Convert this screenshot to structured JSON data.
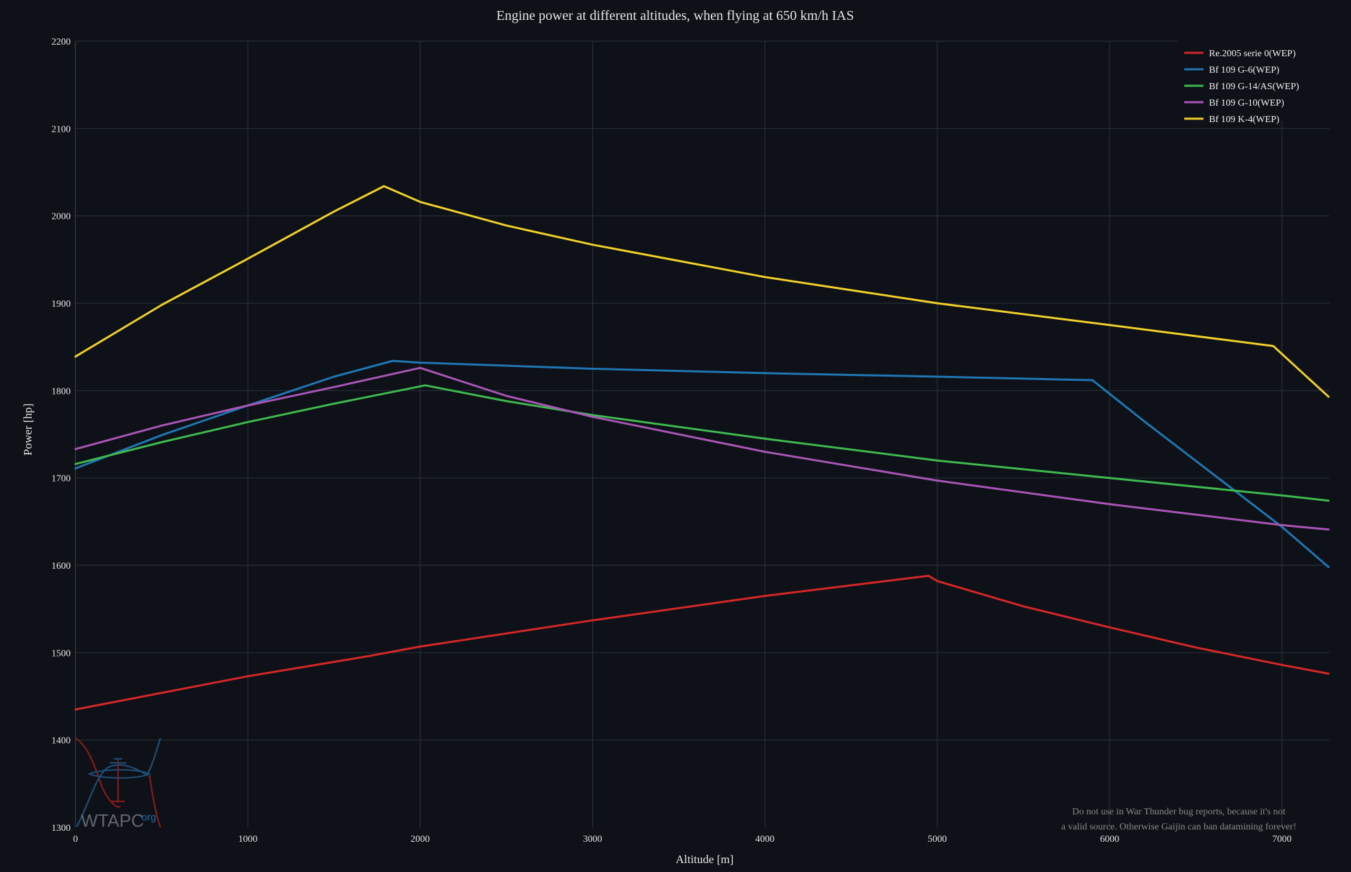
{
  "chart_data": {
    "type": "line",
    "title": "Engine power at different altitudes, when flying at 650 km/h IAS",
    "xlabel": "Altitude [m]",
    "ylabel": "Power [hp]",
    "xlim": [
      0,
      7300
    ],
    "ylim": [
      1300,
      2200
    ],
    "xticks": [
      0,
      1000,
      2000,
      3000,
      4000,
      5000,
      6000,
      7000
    ],
    "yticks": [
      1300,
      1400,
      1500,
      1600,
      1700,
      1800,
      1900,
      2000,
      2100,
      2200
    ],
    "grid": true,
    "legend_position": "top-right",
    "series": [
      {
        "name": "Re.2005 serie 0(WEP)",
        "color": "#d62728",
        "x": [
          0,
          1000,
          1700,
          2000,
          3000,
          4000,
          4950,
          5000,
          5500,
          6000,
          6500,
          7000,
          7270
        ],
        "y": [
          1435,
          1473,
          1496,
          1507,
          1537,
          1565,
          1588,
          1582,
          1553,
          1529,
          1506,
          1486,
          1476
        ]
      },
      {
        "name": "Bf 109 G-6(WEP)",
        "color": "#1f77b4",
        "x": [
          0,
          500,
          1000,
          1500,
          1840,
          2000,
          3000,
          4000,
          5000,
          5900,
          6200,
          7000,
          7270
        ],
        "y": [
          1711,
          1749,
          1783,
          1816,
          1834,
          1832,
          1825,
          1820,
          1816,
          1812,
          1765,
          1644,
          1598
        ]
      },
      {
        "name": "Bf 109 G-14/AS(WEP)",
        "color": "#3fb950",
        "x": [
          0,
          500,
          1000,
          1500,
          2030,
          2500,
          3000,
          4000,
          5000,
          6000,
          7000,
          7270
        ],
        "y": [
          1716,
          1741,
          1764,
          1785,
          1806,
          1788,
          1772,
          1745,
          1720,
          1700,
          1680,
          1674
        ]
      },
      {
        "name": "Bf 109 G-10(WEP)",
        "color": "#a855b5",
        "x": [
          0,
          500,
          1000,
          1500,
          2000,
          2500,
          3000,
          4000,
          5000,
          6000,
          7000,
          7270
        ],
        "y": [
          1733,
          1760,
          1783,
          1804,
          1826,
          1794,
          1770,
          1730,
          1697,
          1670,
          1646,
          1641
        ]
      },
      {
        "name": "Bf 109 K-4(WEP)",
        "color": "#f1d02a",
        "x": [
          0,
          500,
          1000,
          1500,
          1790,
          2000,
          2500,
          3000,
          4000,
          5000,
          6000,
          6950,
          7270
        ],
        "y": [
          1839,
          1898,
          1951,
          2005,
          2034,
          2016,
          1989,
          1967,
          1930,
          1900,
          1875,
          1851,
          1793
        ]
      }
    ]
  },
  "watermark": {
    "logo_text": "WTAPC",
    "logo_suffix": "org",
    "note_line1": "Do not use in War Thunder bug reports, because it's not",
    "note_line2": "a valid source. Otherwise Gaijin can ban datamining forever!"
  }
}
